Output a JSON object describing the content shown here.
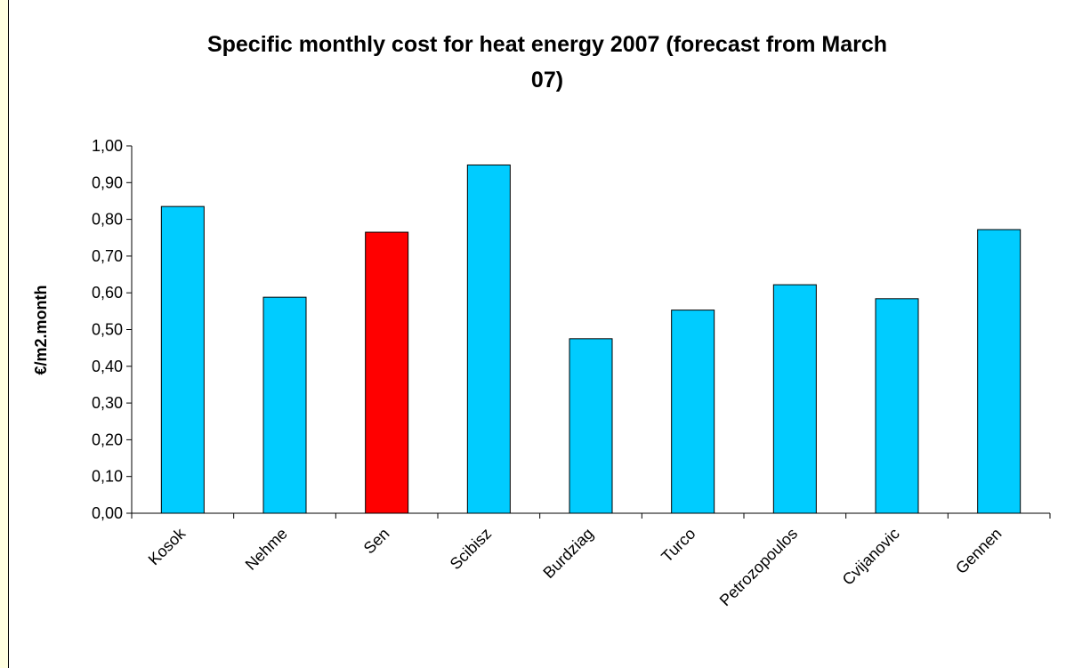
{
  "chart_data": {
    "type": "bar",
    "title_lines": [
      "Specific monthly cost for heat energy 2007 (forecast from March",
      "07)"
    ],
    "xlabel": "",
    "ylabel": "€/m2.month",
    "categories": [
      "Kosok",
      "Nehme",
      "Sen",
      "Scibisz",
      "Burdziag",
      "Turco",
      "Petrozopoulos",
      "Cvijanovic",
      "Gennen"
    ],
    "values": [
      0.835,
      0.588,
      0.765,
      0.948,
      0.475,
      0.553,
      0.622,
      0.584,
      0.772
    ],
    "ylim": [
      0,
      1.0
    ],
    "yticks": [
      "0,00",
      "0,10",
      "0,20",
      "0,30",
      "0,40",
      "0,50",
      "0,60",
      "0,70",
      "0,80",
      "0,90",
      "1,00"
    ],
    "grid": false,
    "legend": "none",
    "colors": {
      "default_bar": "#00CCFF",
      "highlight_bar": "#FF0000",
      "highlight_category": "Sen",
      "border": "#000000",
      "page_background": "#FFFFE0"
    }
  }
}
